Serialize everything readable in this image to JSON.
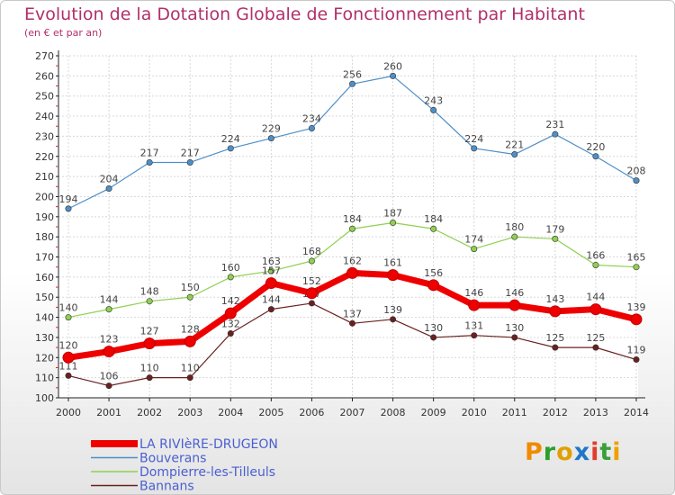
{
  "title": "Evolution de la Dotation Globale de Fonctionnement par Habitant",
  "subtitle": "(en € et par an)",
  "logo": {
    "text": "Proxiti",
    "colors": [
      "#f08a00",
      "#2aa02a",
      "#e0a000",
      "#1f77c8",
      "#e03c2c",
      "#3aa03a",
      "#f0a000"
    ]
  },
  "chart_data": {
    "type": "line",
    "title": "Evolution de la Dotation Globale de Fonctionnement par Habitant",
    "subtitle": "(en € et par an)",
    "x": [
      "2000",
      "2001",
      "2002",
      "2003",
      "2004",
      "2005",
      "2006",
      "2007",
      "2008",
      "2009",
      "2010",
      "2011",
      "2012",
      "2013",
      "2014"
    ],
    "ylim": [
      100,
      270
    ],
    "yticks": [
      100,
      110,
      120,
      130,
      140,
      150,
      160,
      170,
      180,
      190,
      200,
      210,
      220,
      230,
      240,
      250,
      260,
      270
    ],
    "grid": true,
    "legend_position": "bottom-left",
    "series": [
      {
        "name": "LA RIVIèRE-DRUGEON",
        "color": "#ee0000",
        "values": [
          120,
          123,
          127,
          128,
          142,
          157,
          152,
          162,
          161,
          156,
          146,
          146,
          143,
          144,
          139
        ]
      },
      {
        "name": "Bouverans",
        "color": "#4f8fc8",
        "values": [
          194,
          204,
          217,
          217,
          224,
          229,
          234,
          256,
          260,
          243,
          224,
          221,
          231,
          220,
          208
        ]
      },
      {
        "name": "Dompierre-les-Tilleuls",
        "color": "#8fd050",
        "values": [
          140,
          144,
          148,
          150,
          160,
          163,
          168,
          184,
          187,
          184,
          174,
          180,
          179,
          166,
          165
        ]
      },
      {
        "name": "Bannans",
        "color": "#6b2020",
        "values": [
          111,
          106,
          110,
          110,
          132,
          144,
          147,
          137,
          139,
          130,
          131,
          130,
          125,
          125,
          119
        ]
      }
    ]
  }
}
